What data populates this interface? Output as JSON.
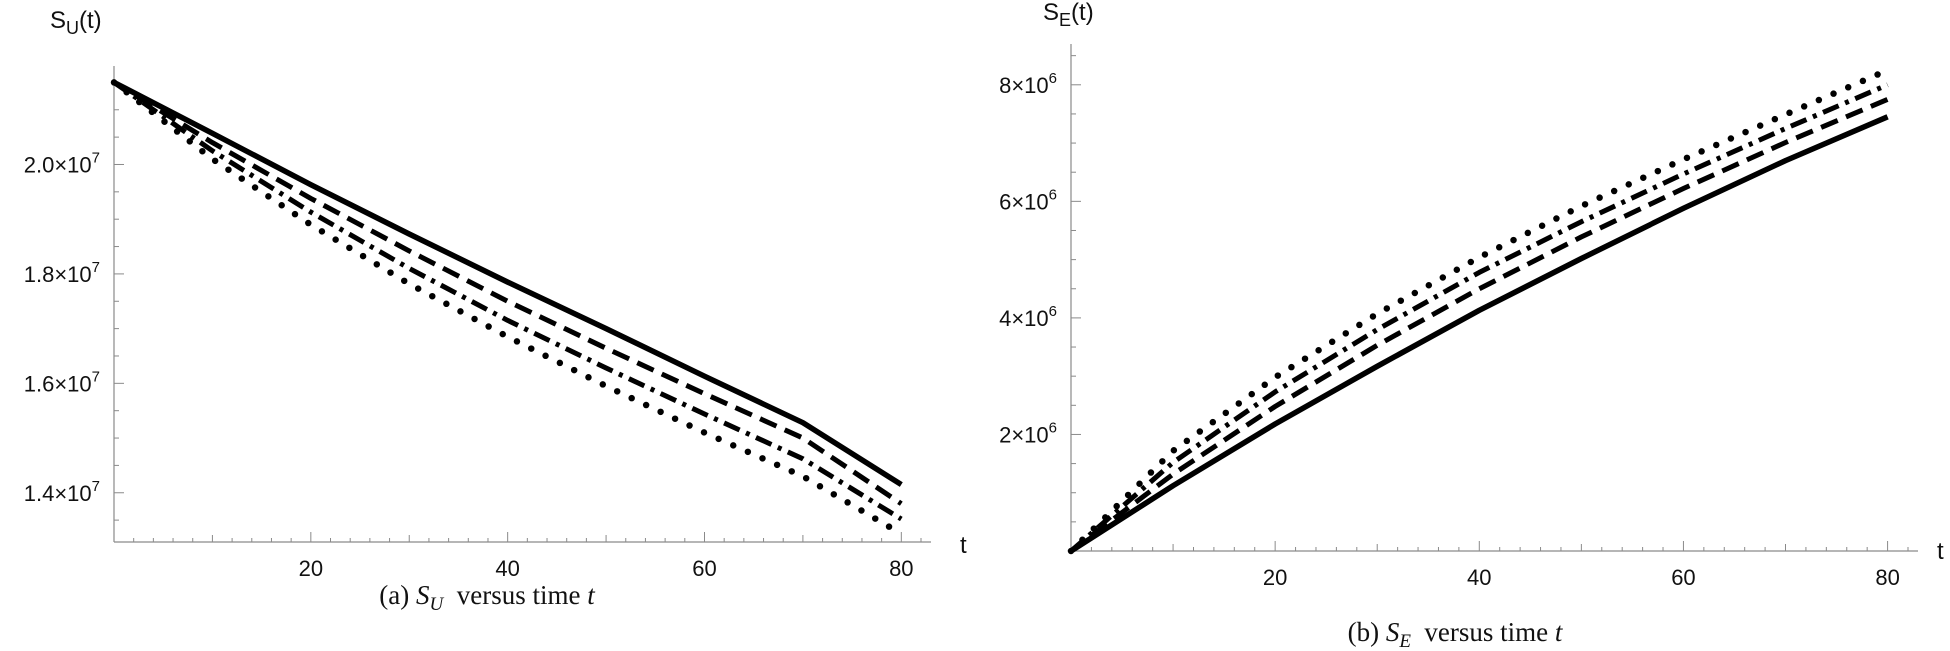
{
  "chart_data": [
    {
      "type": "line",
      "caption": {
        "prefix": "(a)",
        "var": "S",
        "sub": "U",
        "mid": "versus time",
        "tvar": "t"
      },
      "ylabel": {
        "main": "S",
        "sub": "U",
        "suffix": "(t)"
      },
      "xlabel": "t",
      "xlim": [
        0,
        82
      ],
      "ylim": [
        13100000,
        21800000
      ],
      "xticks": [
        20,
        40,
        60,
        80
      ],
      "yticks": [
        {
          "value": 14000000,
          "mant": "1.4",
          "exp": "7"
        },
        {
          "value": 16000000,
          "mant": "1.6",
          "exp": "7"
        },
        {
          "value": 18000000,
          "mant": "1.8",
          "exp": "7"
        },
        {
          "value": 20000000,
          "mant": "2.0",
          "exp": "7"
        }
      ],
      "series": [
        {
          "style": "solid",
          "x": [
            0,
            10,
            20,
            30,
            40,
            50,
            60,
            70,
            80
          ],
          "y": [
            21500000,
            20570000,
            19630000,
            18730000,
            17850000,
            17000000,
            16130000,
            15280000,
            14150000
          ]
        },
        {
          "style": "dashed",
          "x": [
            0,
            10,
            20,
            30,
            40,
            50,
            60,
            70,
            80
          ],
          "y": [
            21500000,
            20400000,
            19380000,
            18420000,
            17500000,
            16640000,
            15810000,
            15000000,
            13800000
          ]
        },
        {
          "style": "dashdot",
          "x": [
            0,
            10,
            20,
            30,
            40,
            50,
            60,
            70,
            80
          ],
          "y": [
            21500000,
            20250000,
            19130000,
            18100000,
            17150000,
            16280000,
            15440000,
            14620000,
            13520000
          ]
        },
        {
          "style": "dotted",
          "x": [
            0,
            10,
            20,
            30,
            40,
            50,
            60,
            70,
            80
          ],
          "y": [
            21500000,
            20100000,
            18900000,
            17820000,
            16850000,
            15950000,
            15100000,
            14300000,
            13250000
          ]
        }
      ]
    },
    {
      "type": "line",
      "caption": {
        "prefix": "(b)",
        "var": "S",
        "sub": "E",
        "mid": "versus time",
        "tvar": "t"
      },
      "ylabel": {
        "main": "S",
        "sub": "E",
        "suffix": "(t)"
      },
      "xlabel": "t",
      "xlim": [
        0,
        82
      ],
      "ylim": [
        0,
        8700000
      ],
      "xticks": [
        20,
        40,
        60,
        80
      ],
      "yticks": [
        {
          "value": 2000000,
          "mant": "2",
          "exp": "6"
        },
        {
          "value": 4000000,
          "mant": "4",
          "exp": "6"
        },
        {
          "value": 6000000,
          "mant": "6",
          "exp": "6"
        },
        {
          "value": 8000000,
          "mant": "8",
          "exp": "6"
        }
      ],
      "series": [
        {
          "style": "solid",
          "x": [
            0,
            10,
            20,
            30,
            40,
            50,
            60,
            70,
            80
          ],
          "y": [
            0,
            1120000,
            2180000,
            3170000,
            4130000,
            5020000,
            5880000,
            6700000,
            7450000
          ]
        },
        {
          "style": "dashed",
          "x": [
            0,
            10,
            20,
            30,
            40,
            50,
            60,
            70,
            80
          ],
          "y": [
            0,
            1320000,
            2480000,
            3530000,
            4500000,
            5390000,
            6220000,
            7010000,
            7750000
          ]
        },
        {
          "style": "dashdot",
          "x": [
            0,
            10,
            20,
            30,
            40,
            50,
            60,
            70,
            80
          ],
          "y": [
            0,
            1520000,
            2730000,
            3800000,
            4780000,
            5650000,
            6470000,
            7250000,
            8000000
          ]
        },
        {
          "style": "dotted",
          "x": [
            0,
            10,
            20,
            30,
            40,
            50,
            60,
            70,
            80
          ],
          "y": [
            0,
            1720000,
            2980000,
            4070000,
            5040000,
            5920000,
            6720000,
            7490000,
            8250000
          ]
        }
      ]
    }
  ]
}
